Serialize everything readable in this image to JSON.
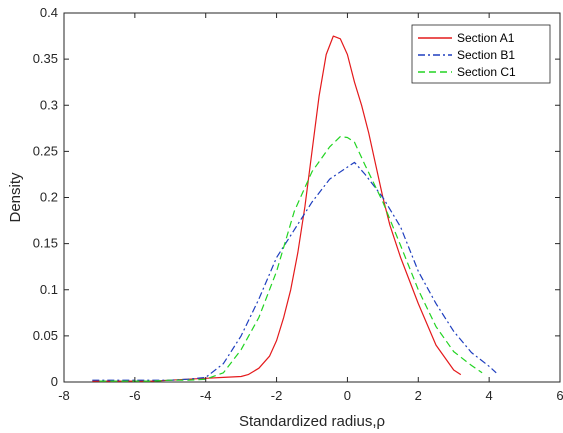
{
  "chart_data": {
    "type": "line",
    "xlabel": "Standardized radius,ρ",
    "ylabel": "Density",
    "xlim": [
      -8,
      6
    ],
    "ylim": [
      0,
      0.4
    ],
    "xticks": [
      -8,
      -6,
      -4,
      -2,
      0,
      2,
      4,
      6
    ],
    "yticks": [
      0,
      0.05,
      0.1,
      0.15,
      0.2,
      0.25,
      0.3,
      0.35,
      0.4
    ],
    "xtick_labels": [
      "-8",
      "-6",
      "-4",
      "-2",
      "0",
      "2",
      "4",
      "6"
    ],
    "ytick_labels": [
      "0",
      "0.05",
      "0.1",
      "0.15",
      "0.2",
      "0.25",
      "0.3",
      "0.35",
      "0.4"
    ],
    "grid": false,
    "legend_position": "top-right",
    "series": [
      {
        "name": "Section A1",
        "color": "#e41a1c",
        "dash": "solid",
        "x": [
          -7.2,
          -6.5,
          -6.0,
          -5.5,
          -5.0,
          -4.5,
          -4.0,
          -3.5,
          -3.0,
          -2.8,
          -2.5,
          -2.2,
          -2.0,
          -1.8,
          -1.6,
          -1.4,
          -1.2,
          -1.0,
          -0.8,
          -0.6,
          -0.4,
          -0.2,
          0.0,
          0.2,
          0.4,
          0.6,
          0.8,
          1.0,
          1.2,
          1.5,
          2.0,
          2.5,
          3.0,
          3.2
        ],
        "y": [
          0.001,
          0.001,
          0.001,
          0.001,
          0.002,
          0.003,
          0.004,
          0.005,
          0.006,
          0.008,
          0.015,
          0.028,
          0.045,
          0.07,
          0.1,
          0.14,
          0.19,
          0.25,
          0.31,
          0.355,
          0.375,
          0.372,
          0.355,
          0.325,
          0.3,
          0.27,
          0.235,
          0.2,
          0.17,
          0.135,
          0.085,
          0.04,
          0.013,
          0.008
        ]
      },
      {
        "name": "Section B1",
        "color": "#1f3fbf",
        "dash": "dashdot",
        "x": [
          -7.2,
          -6.5,
          -6.0,
          -5.5,
          -5.0,
          -4.5,
          -4.0,
          -3.5,
          -3.0,
          -2.5,
          -2.0,
          -1.5,
          -1.0,
          -0.5,
          0.0,
          0.2,
          0.5,
          1.0,
          1.5,
          2.0,
          2.5,
          3.0,
          3.5,
          4.0,
          4.2
        ],
        "y": [
          0.002,
          0.002,
          0.002,
          0.002,
          0.002,
          0.003,
          0.005,
          0.02,
          0.05,
          0.09,
          0.135,
          0.165,
          0.195,
          0.22,
          0.233,
          0.238,
          0.225,
          0.2,
          0.168,
          0.12,
          0.085,
          0.055,
          0.032,
          0.017,
          0.01
        ]
      },
      {
        "name": "Section C1",
        "color": "#22d422",
        "dash": "dashed",
        "x": [
          -7.0,
          -6.5,
          -6.0,
          -5.5,
          -5.0,
          -4.5,
          -4.0,
          -3.5,
          -3.0,
          -2.5,
          -2.0,
          -1.5,
          -1.0,
          -0.5,
          -0.2,
          0.0,
          0.2,
          0.5,
          1.0,
          1.5,
          2.0,
          2.5,
          3.0,
          3.5,
          3.8
        ],
        "y": [
          0.001,
          0.001,
          0.001,
          0.001,
          0.002,
          0.002,
          0.003,
          0.01,
          0.035,
          0.07,
          0.12,
          0.185,
          0.228,
          0.255,
          0.266,
          0.265,
          0.26,
          0.235,
          0.195,
          0.148,
          0.1,
          0.06,
          0.033,
          0.018,
          0.01
        ]
      }
    ]
  }
}
